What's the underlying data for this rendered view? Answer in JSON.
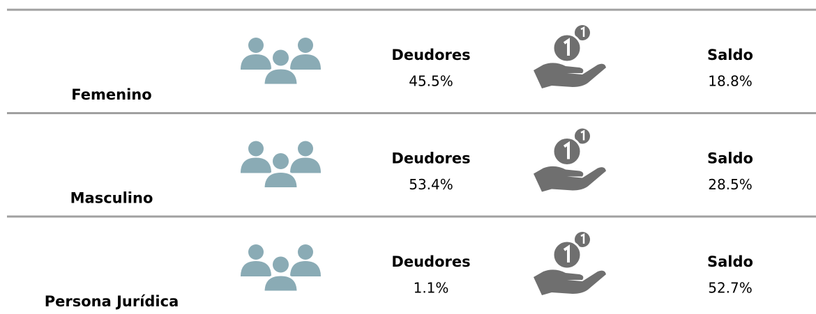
{
  "rows": [
    {
      "label": "Femenino",
      "deudores_label": "Deudores",
      "deudores_value": "45.5%",
      "saldo_label": "Saldo",
      "saldo_value": "18.8%"
    },
    {
      "label": "Masculino",
      "deudores_label": "Deudores",
      "deudores_value": "53.4%",
      "saldo_label": "Saldo",
      "saldo_value": "28.5%"
    },
    {
      "label": "Persona Jurídica",
      "deudores_label": "Deudores",
      "deudores_value": "1.1%",
      "saldo_label": "Saldo",
      "saldo_value": "52.7%"
    }
  ]
}
